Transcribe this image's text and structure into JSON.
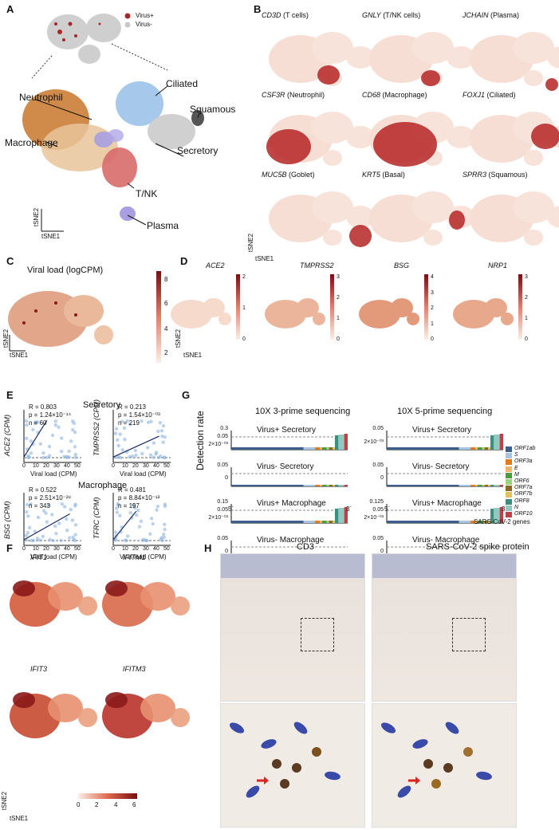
{
  "panels": {
    "A": {
      "label": "A",
      "legend": [
        "Virus+",
        "Virus-"
      ],
      "clusters": [
        "Ciliated",
        "Neutrophil",
        "Squamous",
        "Macrophage",
        "Secretory",
        "T/NK",
        "Plasma"
      ],
      "axes": {
        "y": "tSNE2",
        "x": "tSNE1"
      }
    },
    "B": {
      "label": "B",
      "genes": [
        {
          "gene": "CD3D",
          "cell": "(T cells)"
        },
        {
          "gene": "GNLY",
          "cell": "(T/NK cells)"
        },
        {
          "gene": "JCHAIN",
          "cell": "(Plasma)"
        },
        {
          "gene": "CSF3R",
          "cell": "(Neutrophil)"
        },
        {
          "gene": "CD68",
          "cell": "(Macrophage)"
        },
        {
          "gene": "FOXJ1",
          "cell": "(Ciliated)"
        },
        {
          "gene": "MUC5B",
          "cell": "(Goblet)"
        },
        {
          "gene": "KRT5",
          "cell": "(Basal)"
        },
        {
          "gene": "SPRR3",
          "cell": "(Squamous)"
        }
      ],
      "axes": {
        "y": "tSNE2",
        "x": "tSNE1"
      }
    },
    "C": {
      "label": "C",
      "title": "Viral load (logCPM)",
      "scale": [
        "8",
        "6",
        "4",
        "2"
      ],
      "axes": {
        "y": "tSNE2",
        "x": "tSNE1"
      }
    },
    "D": {
      "label": "D",
      "genes": [
        {
          "gene": "ACE2",
          "scale": [
            "2",
            "1",
            "0"
          ]
        },
        {
          "gene": "TMPRSS2",
          "scale": [
            "3",
            "2",
            "1",
            "0"
          ]
        },
        {
          "gene": "BSG",
          "scale": [
            "4",
            "3",
            "2",
            "1",
            "0"
          ]
        },
        {
          "gene": "NRP1",
          "scale": [
            "3",
            "2",
            "1",
            "0"
          ]
        }
      ],
      "axes": {
        "y": "tSNE2",
        "x": "tSNE1"
      }
    },
    "E": {
      "label": "E",
      "groups": [
        "Secretory",
        "Macrophage"
      ],
      "xlabel": "Viral load (CPM)",
      "xticks": [
        "0",
        "10",
        "20",
        "30",
        "40",
        "50"
      ],
      "plots": [
        {
          "ylabel": "ACE2 (CPM)",
          "r": "R = 0.803",
          "p": "p = 1.24×10⁻¹⁴",
          "n": "n = 60"
        },
        {
          "ylabel": "TMPRSS2 (CPM)",
          "r": "R = 0.213",
          "p": "p = 1.54×10⁻⁰³",
          "n": "n = 219"
        },
        {
          "ylabel": "BSG (CPM)",
          "r": "R = 0.522",
          "p": "p = 2.51×10⁻²⁸",
          "n": "n = 343"
        },
        {
          "ylabel": "TFRC (CPM)",
          "r": "R = 0.481",
          "p": "p = 8.84×10⁻¹³",
          "n": "n = 197"
        }
      ]
    },
    "G": {
      "label": "G",
      "col_titles": [
        "10X 3-prime sequencing",
        "10X 5-prime sequencing"
      ],
      "ylabel": "Detection rate",
      "rows_left": [
        {
          "title": "Virus+ Secretory",
          "ticks": [
            "0.3",
            "0.05",
            "2×10⁻⁰³"
          ]
        },
        {
          "title": "Virus- Secretory",
          "ticks": [
            "0.05",
            "0"
          ]
        },
        {
          "title": "Virus+ Macrophage",
          "ticks": [
            "0.15",
            "0.05",
            "2×10⁻⁰³"
          ]
        },
        {
          "title": "Virus- Macrophage",
          "ticks": [
            "0.05",
            "0"
          ]
        }
      ],
      "rows_right": [
        {
          "title": "Virus+ Secretory",
          "ticks": [
            "0.05",
            "2×10⁻⁰³"
          ]
        },
        {
          "title": "Virus- Secretory",
          "ticks": [
            "0.05",
            "0"
          ]
        },
        {
          "title": "Virus+ Macrophage",
          "ticks": [
            "0.125",
            "0.05",
            "2×10⁻⁰³"
          ]
        },
        {
          "title": "Virus- Macrophage",
          "ticks": [
            "0.05",
            "0"
          ]
        }
      ],
      "ends": [
        "5`",
        "3`"
      ],
      "legend_title": "SARS-CoV-2 genes",
      "legend": [
        {
          "name": "ORF1ab",
          "color": "#3b5f8a"
        },
        {
          "name": "S",
          "color": "#a8c4e0"
        },
        {
          "name": "ORF3a",
          "color": "#e07b20"
        },
        {
          "name": "E",
          "color": "#f2b467"
        },
        {
          "name": "M",
          "color": "#4e9a3f"
        },
        {
          "name": "ORF6",
          "color": "#9fd07a"
        },
        {
          "name": "ORF7a",
          "color": "#8a6a20"
        },
        {
          "name": "ORF7b",
          "color": "#e0c060"
        },
        {
          "name": "ORF8",
          "color": "#3e8e80"
        },
        {
          "name": "N",
          "color": "#8fc9c0"
        },
        {
          "name": "ORF10",
          "color": "#c0404a"
        }
      ]
    },
    "F": {
      "label": "F",
      "genes": [
        "IFIT1",
        "IFITM1",
        "IFIT3",
        "IFITM3"
      ],
      "scale": [
        "0",
        "2",
        "4",
        "6"
      ],
      "axes": {
        "y": "tSNE2",
        "x": "tSNE1"
      }
    },
    "H": {
      "label": "H",
      "titles": [
        "CD3",
        "SARS-CoV-2 spike protein"
      ]
    }
  }
}
